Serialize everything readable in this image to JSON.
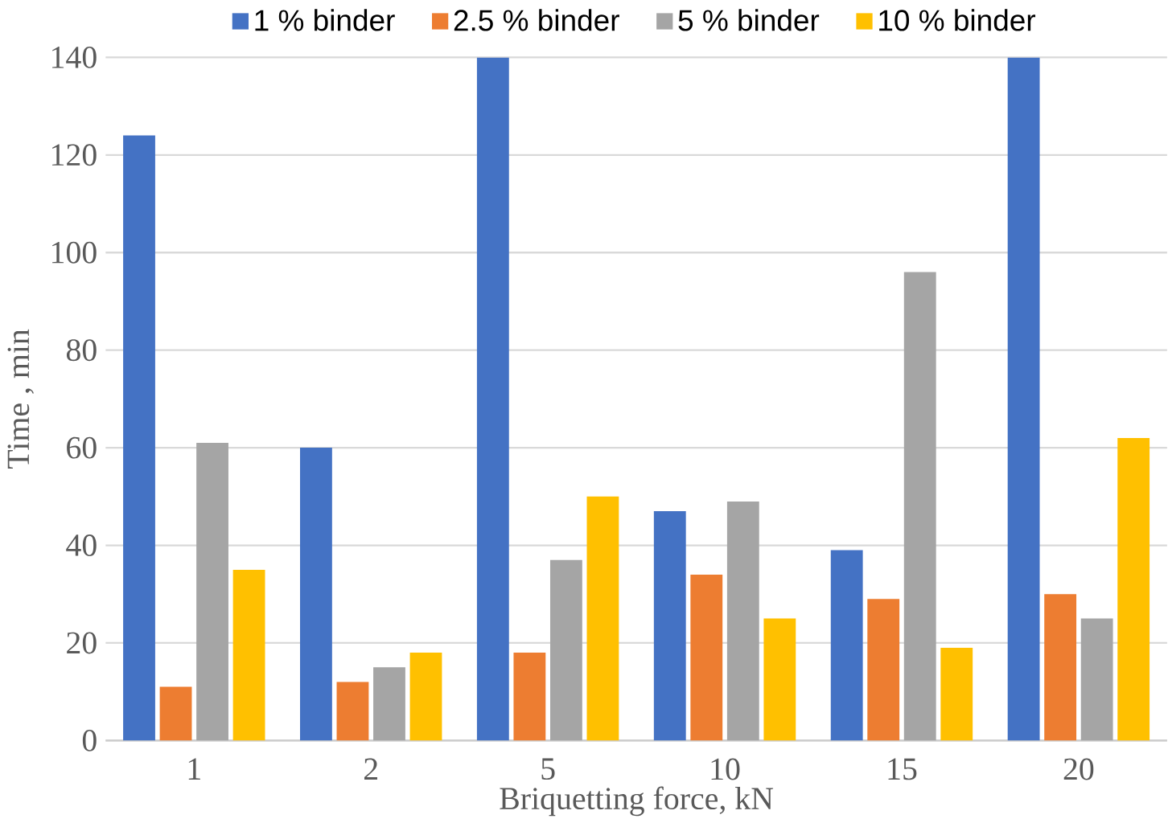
{
  "chart_data": {
    "type": "bar",
    "xlabel": "Briquetting force, kN",
    "ylabel": "Time , min",
    "categories": [
      "1",
      "2",
      "5",
      "10",
      "15",
      "20"
    ],
    "series": [
      {
        "name": "1 % binder",
        "color": "#4472c4",
        "values": [
          124,
          60,
          140,
          47,
          39,
          140
        ]
      },
      {
        "name": "2.5 % binder",
        "color": "#ed7d31",
        "values": [
          11,
          12,
          18,
          34,
          29,
          30
        ]
      },
      {
        "name": "5 % binder",
        "color": "#a5a5a5",
        "values": [
          61,
          15,
          37,
          49,
          96,
          25
        ]
      },
      {
        "name": "10 % binder",
        "color": "#ffc000",
        "values": [
          35,
          18,
          50,
          25,
          19,
          62
        ]
      }
    ],
    "ylim": [
      0,
      140
    ],
    "yticks": [
      0,
      20,
      40,
      60,
      80,
      100,
      120,
      140
    ],
    "grid": "y",
    "legend": "top"
  }
}
